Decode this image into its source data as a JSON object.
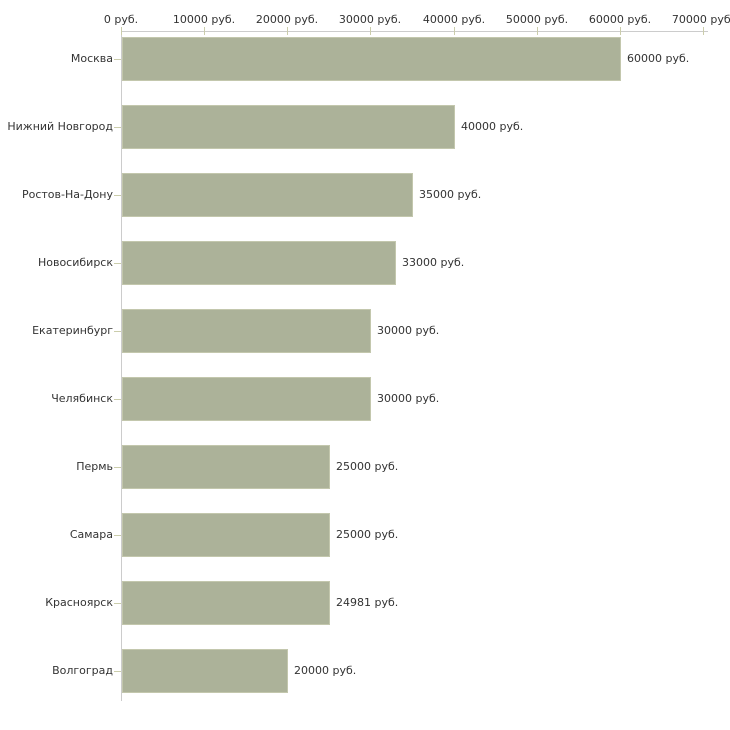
{
  "chart_data": {
    "type": "bar",
    "orientation": "horizontal",
    "title": "",
    "xlabel": "",
    "ylabel": "",
    "x_axis": {
      "position": "top",
      "range": [
        0,
        70000
      ],
      "ticks": [
        0,
        10000,
        20000,
        30000,
        40000,
        50000,
        60000,
        70000
      ],
      "tick_labels": [
        "0 руб.",
        "10000 руб.",
        "20000 руб.",
        "30000 руб.",
        "40000 руб.",
        "50000 руб.",
        "60000 руб.",
        "70000 руб."
      ]
    },
    "categories": [
      "Москва",
      "Нижний Новгород",
      "Ростов-На-Дону",
      "Новосибирск",
      "Екатеринбург",
      "Челябинск",
      "Пермь",
      "Самара",
      "Красноярск",
      "Волгоград"
    ],
    "values": [
      60000,
      40000,
      35000,
      33000,
      30000,
      30000,
      25000,
      25000,
      24981,
      20000
    ],
    "value_labels": [
      "60000 руб.",
      "40000 руб.",
      "35000 руб.",
      "33000 руб.",
      "30000 руб.",
      "30000 руб.",
      "25000 руб.",
      "25000 руб.",
      "24981 руб.",
      "20000 руб."
    ],
    "grid": false,
    "legend": false,
    "colors": {
      "bar_fill": "#acb299",
      "bar_border": "#c3c7ad",
      "axis_line": "#cccccc",
      "tick_mark": "#cbcdab",
      "text": "#333333",
      "background": "#ffffff"
    }
  }
}
